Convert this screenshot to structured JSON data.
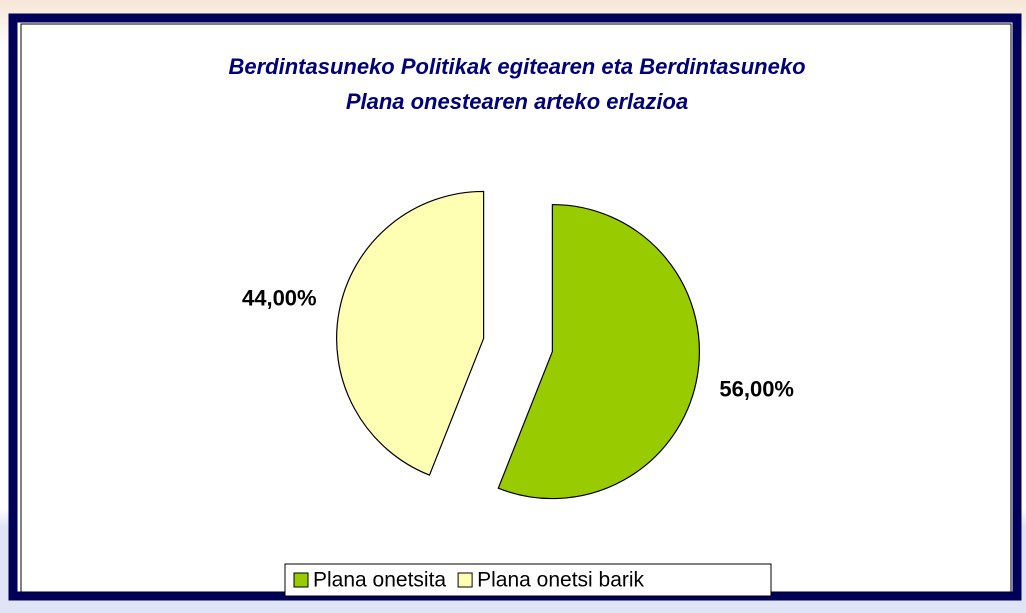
{
  "chart_data": {
    "type": "pie",
    "title": "Berdintasuneko Politikak egitearen eta Berdintasuneko Plana onestearen arteko erlazioa",
    "title_lines": [
      "Berdintasuneko Politikak egitearen eta Berdintasuneko",
      "Plana onestearen arteko erlazioa"
    ],
    "categories": [
      "Plana onetsita",
      "Plana onetsi barik"
    ],
    "values": [
      56,
      44
    ],
    "value_labels": [
      "56,00%",
      "44,00%"
    ],
    "colors": [
      "#99cc00",
      "#ffffb3"
    ],
    "legend": "bottom"
  }
}
